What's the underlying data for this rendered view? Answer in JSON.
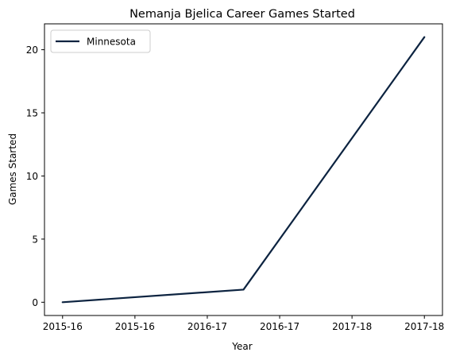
{
  "chart_data": {
    "type": "line",
    "title": "Nemanja Bjelica Career Games Started",
    "xlabel": "Year",
    "ylabel": "Games Started",
    "x_tick_labels": [
      "2015-16",
      "2015-16",
      "2016-17",
      "2016-17",
      "2017-18",
      "2017-18"
    ],
    "x_range": [
      -0.25,
      5.25
    ],
    "ylim": [
      -1.05,
      22.05
    ],
    "y_ticks": [
      0,
      5,
      10,
      15,
      20
    ],
    "grid": false,
    "legend_position": "top-left",
    "series": [
      {
        "name": "Minnesota",
        "color": "#0c2340",
        "x": [
          0,
          2.5,
          5
        ],
        "values": [
          0,
          1,
          21
        ]
      }
    ]
  }
}
